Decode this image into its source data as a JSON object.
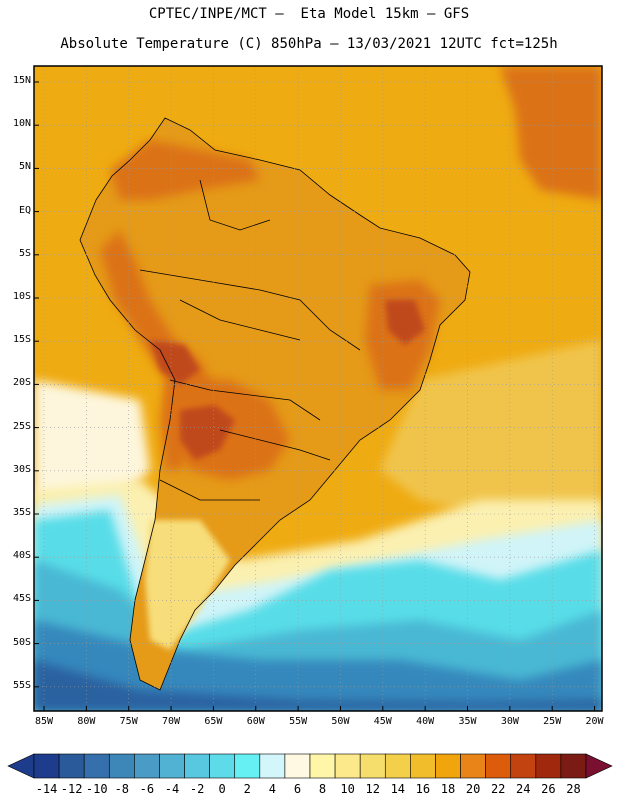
{
  "header": {
    "line1": "CPTEC/INPE/MCT –  Eta Model 15km – GFS",
    "line2": "Absolute Temperature (C) 850hPa – 13/03/2021 12UTC fct=125h"
  },
  "axes": {
    "lat_labels": [
      "15N",
      "10N",
      "5N",
      "EQ",
      "5S",
      "10S",
      "15S",
      "20S",
      "25S",
      "30S",
      "35S",
      "40S",
      "45S",
      "50S",
      "55S"
    ],
    "lon_labels": [
      "85W",
      "80W",
      "75W",
      "70W",
      "65W",
      "60W",
      "55W",
      "50W",
      "45W",
      "40W",
      "35W",
      "30W",
      "25W",
      "20W"
    ]
  },
  "colorbar": {
    "labels": [
      "-14",
      "-12",
      "-10",
      "-8",
      "-6",
      "-4",
      "-2",
      "0",
      "2",
      "4",
      "6",
      "8",
      "10",
      "12",
      "14",
      "16",
      "18",
      "20",
      "22",
      "24",
      "26",
      "28"
    ],
    "colors": [
      "#1e3c8c",
      "#2a5a9a",
      "#3570ac",
      "#3d86b8",
      "#4a9cc6",
      "#52b2d4",
      "#58c8e0",
      "#5edbe8",
      "#66f0f4",
      "#d2f6fa",
      "#fff8e2",
      "#fff6a8",
      "#fbe98c",
      "#f6de6c",
      "#f3cf4a",
      "#f2bd2a",
      "#f0a50c",
      "#e88418",
      "#dc5c0c",
      "#c24310",
      "#a0280c",
      "#7a1c14"
    ]
  },
  "map_colors": {
    "ocean_base": "#efab12",
    "land_base": "#e59a18",
    "hot": "#dc7218",
    "very_hot": "#c0481a",
    "warm_ocean": "#f0c44c",
    "cool_yellow": "#f7de7a",
    "pale": "#fbf0b0",
    "cream": "#fdf6dc",
    "ice": "#d0f4f8",
    "cyan": "#58dde8",
    "teal": "#48b8d4",
    "blue": "#3688bc",
    "deep_blue": "#2c62a0"
  }
}
